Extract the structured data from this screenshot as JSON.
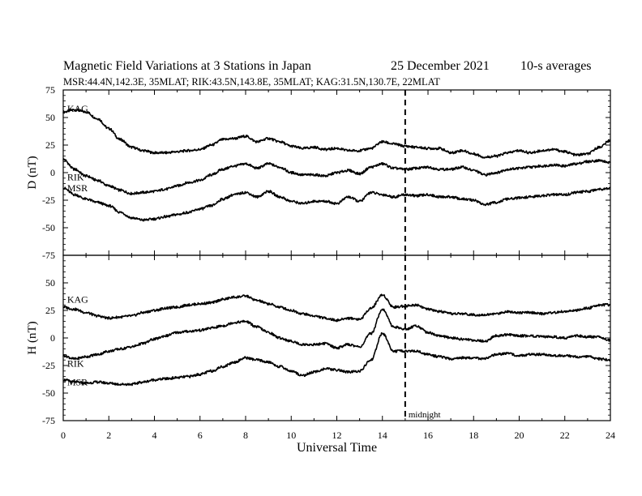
{
  "header": {
    "title": "Magnetic Field Variations at 3 Stations in Japan",
    "date": "25 December 2021",
    "averaging": "10-s averages",
    "stations": "MSR:44.4N,142.3E, 35MLAT;  RIK:43.5N,143.8E, 35MLAT;  KAG:31.5N,130.7E, 22MLAT"
  },
  "chart_data": [
    {
      "type": "line",
      "panel": "top",
      "ylabel": "D (nT)",
      "xlabel": "",
      "xlim": [
        0,
        24
      ],
      "ylim": [
        -75,
        75
      ],
      "yticks": [
        -75,
        -50,
        -25,
        0,
        25,
        50,
        75
      ],
      "xticks": [
        0,
        2,
        4,
        6,
        8,
        10,
        12,
        14,
        16,
        18,
        20,
        22,
        24
      ],
      "grid": false,
      "x": [
        0,
        0.5,
        1,
        1.5,
        2,
        2.5,
        3,
        3.5,
        4,
        4.5,
        5,
        5.5,
        6,
        6.5,
        7,
        7.5,
        8,
        8.5,
        9,
        9.5,
        10,
        10.5,
        11,
        11.5,
        12,
        12.5,
        13,
        13.5,
        14,
        14.5,
        15,
        15.5,
        16,
        16.5,
        17,
        17.5,
        18,
        18.5,
        19,
        19.5,
        20,
        20.5,
        21,
        21.5,
        22,
        22.5,
        23,
        23.5,
        24
      ],
      "series": [
        {
          "name": "KAG",
          "label_at": [
            0.1,
            58
          ],
          "color": "#000000",
          "values": [
            55,
            57,
            55,
            49,
            40,
            30,
            23,
            20,
            18,
            18,
            19,
            20,
            21,
            25,
            30,
            31,
            33,
            28,
            31,
            28,
            24,
            22,
            23,
            21,
            22,
            20,
            20,
            22,
            28,
            26,
            24,
            23,
            22,
            22,
            18,
            20,
            17,
            14,
            15,
            18,
            20,
            18,
            20,
            21,
            19,
            16,
            17,
            23,
            29
          ]
        },
        {
          "name": "RIK",
          "label_at": [
            0.1,
            -4
          ],
          "color": "#000000",
          "values": [
            12,
            3,
            -3,
            -7,
            -12,
            -16,
            -19,
            -18,
            -17,
            -15,
            -12,
            -9,
            -7,
            -2,
            3,
            6,
            8,
            4,
            8,
            5,
            0,
            -2,
            -2,
            -3,
            0,
            2,
            -1,
            5,
            8,
            4,
            3,
            4,
            5,
            3,
            3,
            5,
            2,
            -2,
            0,
            3,
            4,
            5,
            6,
            7,
            6,
            8,
            10,
            11,
            9
          ]
        },
        {
          "name": "MSR",
          "label_at": [
            0.1,
            -14
          ],
          "color": "#000000",
          "values": [
            -14,
            -20,
            -24,
            -27,
            -30,
            -36,
            -41,
            -43,
            -42,
            -40,
            -38,
            -36,
            -33,
            -30,
            -24,
            -20,
            -18,
            -22,
            -17,
            -22,
            -26,
            -28,
            -26,
            -26,
            -28,
            -22,
            -26,
            -18,
            -20,
            -22,
            -20,
            -21,
            -20,
            -22,
            -22,
            -24,
            -25,
            -29,
            -27,
            -24,
            -23,
            -22,
            -21,
            -20,
            -20,
            -18,
            -17,
            -15,
            -14
          ]
        }
      ]
    },
    {
      "type": "line",
      "panel": "bottom",
      "ylabel": "H (nT)",
      "xlabel": "Universal Time",
      "xlim": [
        0,
        24
      ],
      "ylim": [
        -75,
        75
      ],
      "yticks": [
        -75,
        -50,
        -25,
        0,
        25,
        50
      ],
      "xticks": [
        0,
        2,
        4,
        6,
        8,
        10,
        12,
        14,
        16,
        18,
        20,
        22,
        24
      ],
      "grid": false,
      "x": [
        0,
        0.5,
        1,
        1.5,
        2,
        2.5,
        3,
        3.5,
        4,
        4.5,
        5,
        5.5,
        6,
        6.5,
        7,
        7.5,
        8,
        8.5,
        9,
        9.5,
        10,
        10.5,
        11,
        11.5,
        12,
        12.5,
        13,
        13.5,
        14,
        14.5,
        15,
        15.5,
        16,
        16.5,
        17,
        17.5,
        18,
        18.5,
        19,
        19.5,
        20,
        20.5,
        21,
        21.5,
        22,
        22.5,
        23,
        23.5,
        24
      ],
      "series": [
        {
          "name": "KAG",
          "label_at": [
            0.1,
            35
          ],
          "color": "#000000",
          "values": [
            28,
            26,
            23,
            20,
            18,
            19,
            20,
            23,
            25,
            27,
            28,
            30,
            31,
            32,
            35,
            37,
            38,
            34,
            31,
            28,
            25,
            22,
            20,
            18,
            16,
            18,
            17,
            27,
            39,
            28,
            29,
            30,
            26,
            24,
            22,
            22,
            21,
            21,
            22,
            24,
            23,
            23,
            22,
            23,
            24,
            25,
            27,
            30,
            30
          ]
        },
        {
          "name": "RIK",
          "label_at": [
            0.1,
            -23
          ],
          "color": "#000000",
          "values": [
            -16,
            -19,
            -17,
            -15,
            -12,
            -10,
            -8,
            -5,
            -1,
            2,
            5,
            6,
            7,
            9,
            11,
            14,
            15,
            10,
            5,
            0,
            -3,
            -6,
            -6,
            -5,
            -9,
            -6,
            -8,
            4,
            26,
            10,
            8,
            11,
            5,
            2,
            0,
            -1,
            -2,
            -3,
            2,
            3,
            2,
            2,
            1,
            1,
            0,
            2,
            1,
            1,
            -2
          ]
        },
        {
          "name": "MSR",
          "label_at": [
            0.1,
            -40
          ],
          "color": "#000000",
          "values": [
            -38,
            -40,
            -41,
            -40,
            -41,
            -42,
            -42,
            -40,
            -38,
            -37,
            -36,
            -35,
            -33,
            -30,
            -26,
            -22,
            -18,
            -20,
            -22,
            -26,
            -30,
            -34,
            -31,
            -28,
            -29,
            -31,
            -30,
            -20,
            4,
            -12,
            -12,
            -12,
            -15,
            -17,
            -19,
            -18,
            -18,
            -19,
            -15,
            -14,
            -16,
            -15,
            -15,
            -16,
            -16,
            -17,
            -17,
            -19,
            -20
          ]
        }
      ],
      "annotations": [
        {
          "text": "midnight",
          "x": 15,
          "style": "dashed-vertical"
        }
      ]
    }
  ]
}
